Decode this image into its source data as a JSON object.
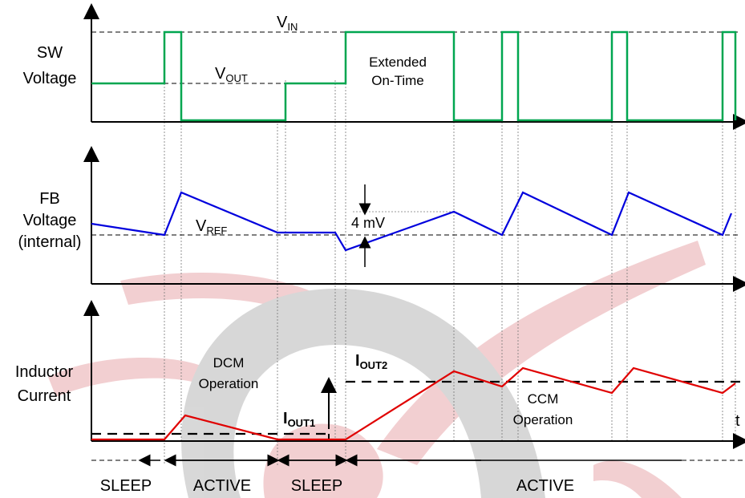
{
  "panels": {
    "sw": {
      "label_line1": "SW",
      "label_line2": "Voltage"
    },
    "fb": {
      "label_line1": "FB",
      "label_line2": "Voltage",
      "label_line3": "(internal)"
    },
    "il": {
      "label_line1": "Inductor",
      "label_line2": "Current"
    }
  },
  "annotations": {
    "vin": {
      "main": "V",
      "sub": "IN"
    },
    "vout": {
      "main": "V",
      "sub": "OUT"
    },
    "vref": {
      "main": "V",
      "sub": "REF"
    },
    "extended_line1": "Extended",
    "extended_line2": "On-Time",
    "ripple": "4 mV",
    "dcm_line1": "DCM",
    "dcm_line2": "Operation",
    "ccm_line1": "CCM",
    "ccm_line2": "Operation",
    "iout1": {
      "main": "I",
      "sub": "OUT1"
    },
    "iout2": {
      "main": "I",
      "sub": "OUT2"
    },
    "time_axis": "t"
  },
  "modes": [
    "SLEEP",
    "ACTIVE",
    "SLEEP",
    "ACTIVE"
  ],
  "colors": {
    "sw_trace": "#00a650",
    "fb_trace": "#0000dd",
    "il_trace": "#e00000",
    "axis": "#000000",
    "watermark_red": "#e8a8ac",
    "watermark_gray": "#b8b8b8"
  }
}
